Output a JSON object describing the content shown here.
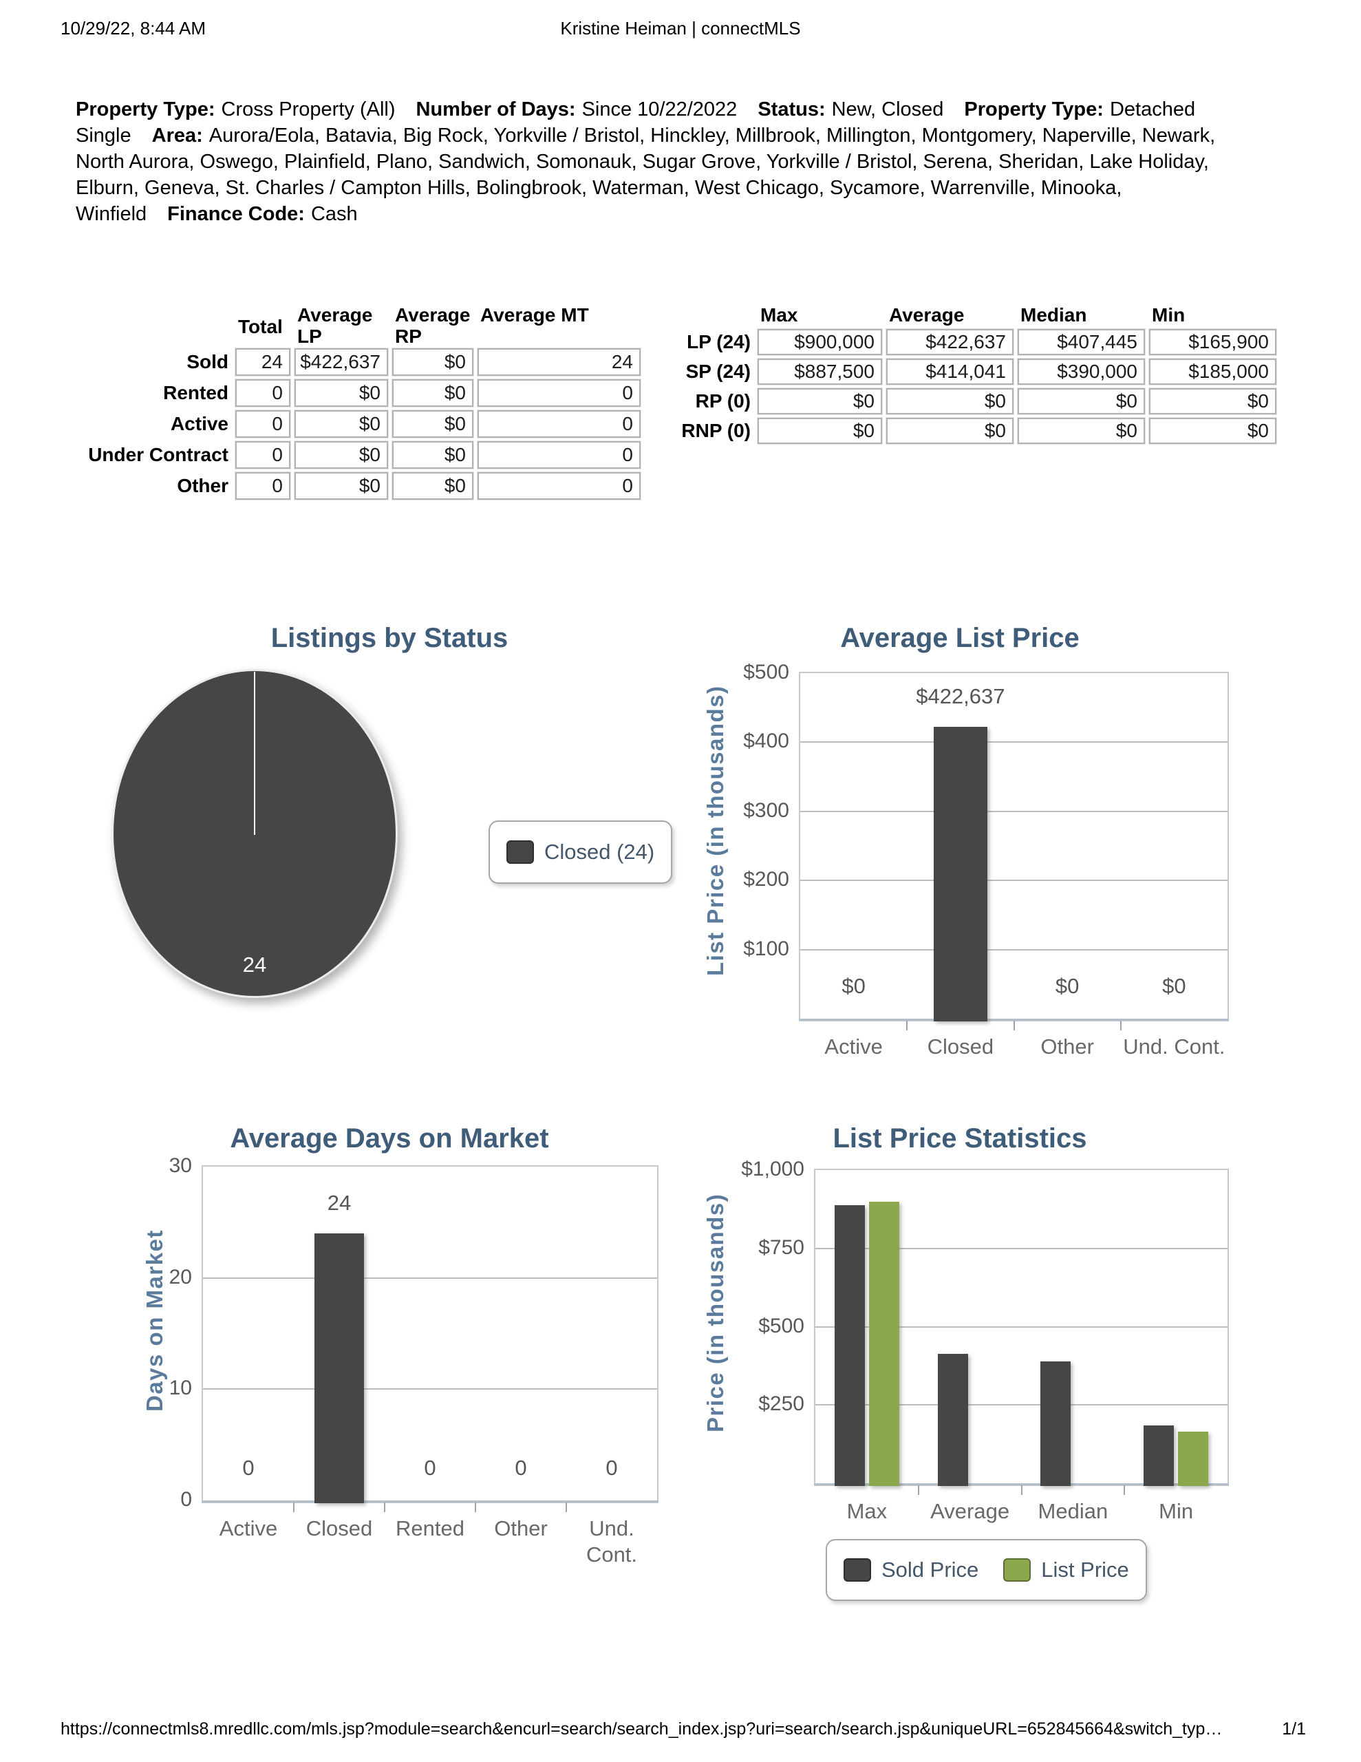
{
  "header": {
    "datetime": "10/29/22, 8:44 AM",
    "title": "Kristine Heiman | connectMLS"
  },
  "criteria": {
    "segments": [
      {
        "label": "Property Type:",
        "value": "Cross Property (All)"
      },
      {
        "label": "Number of Days:",
        "value": "Since 10/22/2022"
      },
      {
        "label": "Status:",
        "value": "New, Closed"
      },
      {
        "label": "Property Type:",
        "value": "Detached Single"
      },
      {
        "label": "Area:",
        "value": "Aurora/Eola, Batavia, Big Rock, Yorkville / Bristol, Hinckley, Millbrook, Millington, Montgomery, Naperville, Newark, North Aurora, Oswego, Plainfield, Plano, Sandwich, Somonauk, Sugar Grove, Yorkville / Bristol, Serena, Sheridan, Lake Holiday, Elburn, Geneva, St. Charles / Campton Hills, Bolingbrook, Waterman, West Chicago, Sycamore, Warrenville, Minooka, Winfield"
      },
      {
        "label": "Finance Code:",
        "value": "Cash"
      }
    ]
  },
  "status_table": {
    "columns": [
      "Total",
      "Average LP",
      "Average RP",
      "Average MT"
    ],
    "rows": [
      {
        "label": "Sold",
        "values": [
          "24",
          "$422,637",
          "$0",
          "24"
        ]
      },
      {
        "label": "Rented",
        "values": [
          "0",
          "$0",
          "$0",
          "0"
        ]
      },
      {
        "label": "Active",
        "values": [
          "0",
          "$0",
          "$0",
          "0"
        ]
      },
      {
        "label": "Under Contract",
        "values": [
          "0",
          "$0",
          "$0",
          "0"
        ]
      },
      {
        "label": "Other",
        "values": [
          "0",
          "$0",
          "$0",
          "0"
        ]
      }
    ]
  },
  "price_table": {
    "columns": [
      "Max",
      "Average",
      "Median",
      "Min"
    ],
    "rows": [
      {
        "label": "LP (24)",
        "values": [
          "$900,000",
          "$422,637",
          "$407,445",
          "$165,900"
        ]
      },
      {
        "label": "SP (24)",
        "values": [
          "$887,500",
          "$414,041",
          "$390,000",
          "$185,000"
        ]
      },
      {
        "label": "RP (0)",
        "values": [
          "$0",
          "$0",
          "$0",
          "$0"
        ]
      },
      {
        "label": "RNP (0)",
        "values": [
          "$0",
          "$0",
          "$0",
          "$0"
        ]
      }
    ]
  },
  "chart_data": [
    {
      "type": "pie",
      "title": "Listings by Status",
      "slices": [
        {
          "label": "Closed",
          "value": 24,
          "color": "#464646"
        }
      ],
      "slice_label": "24",
      "legend": [
        {
          "label": "Closed (24)",
          "color": "#464646"
        }
      ]
    },
    {
      "type": "bar",
      "title": "Average List Price",
      "ylabel": "List Price (in thousands)",
      "categories": [
        "Active",
        "Closed",
        "Other",
        "Und. Cont."
      ],
      "values": [
        0,
        422637,
        0,
        0
      ],
      "value_labels": [
        "$0",
        "$422,637",
        "$0",
        "$0"
      ],
      "ylim": [
        0,
        500000
      ],
      "yticks": [
        {
          "label": "$500",
          "value": 500000
        },
        {
          "label": "$400",
          "value": 400000
        },
        {
          "label": "$300",
          "value": 300000
        },
        {
          "label": "$200",
          "value": 200000
        },
        {
          "label": "$100",
          "value": 100000
        }
      ],
      "bar_color": "#464646",
      "grid": true,
      "legend_position": "none"
    },
    {
      "type": "bar",
      "title": "Average Days on Market",
      "ylabel": "Days on Market",
      "categories": [
        "Active",
        "Closed",
        "Rented",
        "Other",
        "Und. Cont."
      ],
      "values": [
        0,
        24,
        0,
        0,
        0
      ],
      "value_labels": [
        "0",
        "24",
        "0",
        "0",
        "0"
      ],
      "ylim": [
        0,
        30
      ],
      "yticks": [
        {
          "label": "30",
          "value": 30
        },
        {
          "label": "20",
          "value": 20
        },
        {
          "label": "10",
          "value": 10
        },
        {
          "label": "0",
          "value": 0
        }
      ],
      "bar_color": "#464646",
      "grid": true,
      "legend_position": "none"
    },
    {
      "type": "bar",
      "title": "List Price Statistics",
      "ylabel": "Price (in thousands)",
      "categories": [
        "Max",
        "Average",
        "Median",
        "Min"
      ],
      "series": [
        {
          "name": "Sold Price",
          "color": "#464646",
          "values": [
            887500,
            414041,
            390000,
            185000
          ]
        },
        {
          "name": "List Price",
          "color": "#8CA84E",
          "values": [
            900000,
            null,
            null,
            165900
          ]
        }
      ],
      "ylim": [
        0,
        1000000
      ],
      "yticks": [
        {
          "label": "$1,000",
          "value": 1000000
        },
        {
          "label": "$750",
          "value": 750000
        },
        {
          "label": "$500",
          "value": 500000
        },
        {
          "label": "$250",
          "value": 250000
        }
      ],
      "legend": [
        {
          "label": "Sold Price",
          "color": "#464646"
        },
        {
          "label": "List Price",
          "color": "#8CA84E"
        }
      ],
      "grid": true,
      "legend_position": "bottom"
    }
  ],
  "colors": {
    "chart_title": "#3f5c78",
    "axis_title": "#5b7b9c",
    "bar_dark": "#464646",
    "bar_green": "#8CA84E"
  },
  "footer": {
    "url": "https://connectmls8.mredllc.com/mls.jsp?module=search&encurl=search/search_index.jsp?uri=search/search.jsp&uniqueURL=652845664&switch_typ…",
    "page": "1/1"
  }
}
